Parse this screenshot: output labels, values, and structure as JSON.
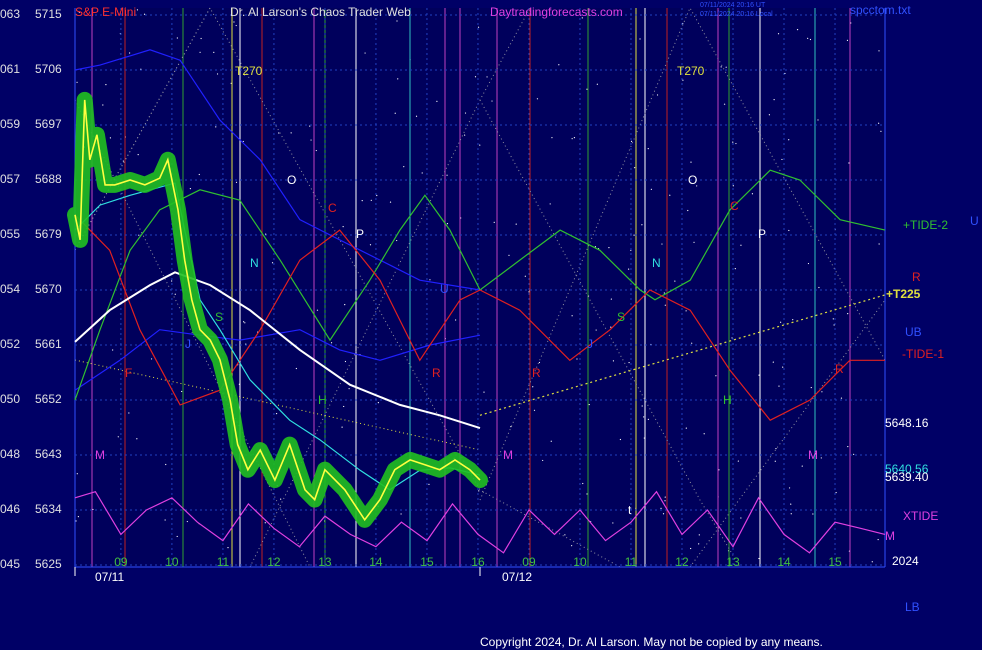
{
  "chart_data": {
    "type": "line",
    "symbol": "S&P E-Mini",
    "title": "Dr. Al Larson's Chaos Trader Web",
    "website": "Daytradingforecasts.com",
    "filename": "spcctom.txt",
    "timestamps": [
      "07/11/2024 20:16 UT",
      "07/11/2024 20:16 Local"
    ],
    "copyright": "Copyright 2024, Dr. Al Larson. May not be copied by any means.",
    "ylim": [
      5625,
      5715
    ],
    "yticks": [
      5715,
      5706,
      5697,
      5688,
      5679,
      5670,
      5661,
      5652,
      5643,
      5634,
      5625
    ],
    "left_labels": [
      "063",
      "061",
      "059",
      "057",
      "055",
      "054",
      "052",
      "050",
      "048",
      "046",
      "045"
    ],
    "xlim": [
      0.1,
      15.98
    ],
    "xticks": [
      {
        "value": 1,
        "label": "09"
      },
      {
        "value": 2,
        "label": "10"
      },
      {
        "value": 3,
        "label": "11"
      },
      {
        "value": 4,
        "label": "12"
      },
      {
        "value": 5,
        "label": "13"
      },
      {
        "value": 6,
        "label": "14"
      },
      {
        "value": 7,
        "label": "15"
      },
      {
        "value": 8,
        "label": "16"
      },
      {
        "value": 9,
        "label": "09"
      },
      {
        "value": 10,
        "label": "10"
      },
      {
        "value": 11,
        "label": "11"
      },
      {
        "value": 12,
        "label": "12"
      },
      {
        "value": 13,
        "label": "13"
      },
      {
        "value": 14,
        "label": "14"
      },
      {
        "value": 15,
        "label": "15"
      }
    ],
    "date_labels": [
      "07/11",
      "07/12"
    ],
    "grid": true,
    "series": [
      {
        "color": "#2020ff",
        "x": [
          0.1,
          0.59,
          1.57,
          2.16,
          2.94,
          3.73,
          4.51,
          5.29,
          6.08,
          6.86,
          8.04
        ],
        "values": [
          5706.0,
          5706.8,
          5709.3,
          5707.6,
          5697.8,
          5691.3,
          5681.5,
          5678.2,
          5674.9,
          5671.6,
          5670.0
        ]
      },
      {
        "color": "#2020ff",
        "x": [
          0.1,
          0.98,
          1.76,
          2.55,
          3.33,
          4.51,
          5.29,
          6.08,
          7.06,
          8.04
        ],
        "values": [
          5653.6,
          5658.5,
          5663.5,
          5662.6,
          5661.8,
          5663.5,
          5660.2,
          5658.5,
          5661.0,
          5662.6
        ]
      },
      {
        "name": "+TIDE-2",
        "color": "#30c030",
        "x": [
          0.1,
          0.59,
          1.18,
          1.76,
          2.55,
          3.33,
          4.12,
          5.1,
          5.88,
          6.47,
          6.96,
          7.45,
          8.04,
          8.82,
          9.61,
          10.39,
          11.18,
          11.47,
          12.16,
          12.94,
          13.73,
          14.31,
          15.1,
          15.98
        ],
        "values": [
          5652.0,
          5663.5,
          5676.5,
          5683.1,
          5686.4,
          5684.7,
          5674.9,
          5661.8,
          5671.6,
          5679.8,
          5685.5,
          5679.8,
          5670.0,
          5674.9,
          5679.8,
          5676.5,
          5670.0,
          5668.4,
          5671.6,
          5683.1,
          5689.6,
          5688.0,
          5681.5,
          5679.8
        ]
      },
      {
        "name": "-TIDE-1",
        "color": "#e02020",
        "x": [
          0.1,
          0.78,
          1.37,
          2.16,
          2.94,
          3.73,
          4.51,
          5.29,
          6.08,
          6.86,
          7.65,
          8.04,
          8.82,
          9.8,
          10.59,
          11.37,
          12.16,
          12.94,
          13.73,
          14.51,
          15.29,
          15.98
        ],
        "values": [
          5682.3,
          5676.5,
          5663.5,
          5651.2,
          5653.6,
          5663.5,
          5674.9,
          5679.8,
          5671.6,
          5658.5,
          5668.4,
          5670.0,
          5666.7,
          5658.5,
          5663.5,
          5670.0,
          5666.7,
          5656.9,
          5648.7,
          5652.0,
          5658.5,
          5658.5
        ]
      },
      {
        "name": "XTIDE",
        "color": "#e040e0",
        "x": [
          0.1,
          0.5,
          1,
          1.5,
          2,
          2.5,
          3,
          3.5,
          4,
          4.5,
          5,
          5.5,
          6,
          6.5,
          7,
          7.5,
          8,
          8.5,
          9,
          9.5,
          10,
          10.5,
          11,
          11.5,
          12,
          12.5,
          13,
          13.5,
          14,
          14.5,
          15,
          15.5,
          15.98
        ],
        "values": [
          5636,
          5637,
          5630,
          5634,
          5636,
          5632,
          5629,
          5635,
          5631,
          5628,
          5633,
          5630,
          5628,
          5632,
          5629,
          5635,
          5630,
          5627,
          5634,
          5630,
          5634,
          5629,
          5632,
          5637,
          5630,
          5634,
          5628,
          5636,
          5630,
          5627,
          5632,
          5631,
          5630
        ]
      },
      {
        "color": "#ffffff",
        "x": [
          0.1,
          0.78,
          1.57,
          2.06,
          2.75,
          3.53,
          4.51,
          5.49,
          6.47,
          7.25,
          8.04
        ],
        "values": [
          5661.5,
          5666.7,
          5670.8,
          5672.9,
          5670.8,
          5666.7,
          5660.2,
          5654.5,
          5651.2,
          5649.5,
          5647.4
        ]
      },
      {
        "name": "+T225",
        "color": "#e0e040",
        "dash": true,
        "x": [
          8.04,
          15.98
        ],
        "values": [
          5649.5,
          5669.2
        ]
      },
      {
        "color": "#30e0e0",
        "x": [
          0.1,
          0.59,
          1.18,
          2.06,
          2.25,
          2.55,
          2.94,
          3.53,
          4.31,
          4.9,
          5.69,
          6.27,
          6.86,
          7.45,
          8.04
        ],
        "values": [
          5679.8,
          5683.9,
          5685.5,
          5687.5,
          5679.8,
          5668.4,
          5663.5,
          5655.3,
          5648.7,
          5645.5,
          5640.5,
          5637.3,
          5640.5,
          5640.9,
          5639.7
        ]
      },
      {
        "color": "#ffff40",
        "glow": "#20c020",
        "x": [
          0.1,
          0.2,
          0.29,
          0.39,
          0.53,
          0.69,
          0.88,
          1.18,
          1.47,
          1.76,
          1.92,
          2.12,
          2.25,
          2.39,
          2.55,
          2.75,
          2.94,
          3.14,
          3.29,
          3.49,
          3.73,
          4.02,
          4.31,
          4.61,
          4.8,
          5,
          5.39,
          5.78,
          6.08,
          6.37,
          6.67,
          6.96,
          7.25,
          7.55,
          7.84,
          8.04
        ],
        "values": [
          5682.3,
          5678.2,
          5701.1,
          5691.3,
          5695.4,
          5687.2,
          5687.2,
          5688.0,
          5687.2,
          5688.3,
          5691.3,
          5683.1,
          5674.9,
          5668.4,
          5663.5,
          5661.8,
          5658.6,
          5652.0,
          5644.7,
          5640.6,
          5643.8,
          5638.9,
          5644.7,
          5637.3,
          5635.7,
          5640.6,
          5637.3,
          5632.4,
          5635.7,
          5640.6,
          5642.2,
          5641.4,
          5640.6,
          5642.2,
          5640.6,
          5638.9
        ]
      }
    ],
    "annotations": [
      "T270",
      "T270",
      "O",
      "O",
      "C",
      "C",
      "P",
      "P",
      "N",
      "N",
      "U",
      "S",
      "S",
      "J",
      "J",
      "F",
      "R",
      "R",
      "R",
      "H",
      "H",
      "M",
      "M",
      "M",
      "t"
    ],
    "right_labels": [
      "U",
      "R",
      "UB",
      "5648.16",
      "5640.56",
      "5639.40",
      "M",
      "2024",
      "LB"
    ]
  }
}
